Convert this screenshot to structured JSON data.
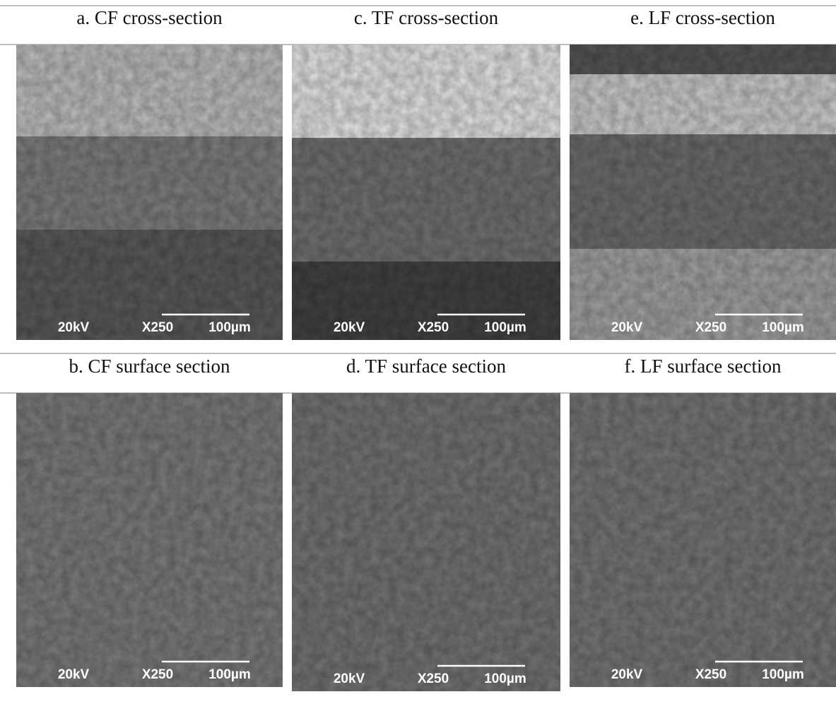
{
  "panels": [
    {
      "caption": "a. CF cross-section",
      "voltage": "20kV",
      "magnification": "X250",
      "scale": "100µm"
    },
    {
      "caption": "c. TF cross-section",
      "voltage": "20kV",
      "magnification": "X250",
      "scale": "100µm"
    },
    {
      "caption": "e. LF cross-section",
      "voltage": "20kV",
      "magnification": "X250",
      "scale": "100µm"
    },
    {
      "caption": "b. CF surface section",
      "voltage": "20kV",
      "magnification": "X250",
      "scale": "100µm"
    },
    {
      "caption": "d. TF surface section",
      "voltage": "20kV",
      "magnification": "X250",
      "scale": "100µm"
    },
    {
      "caption": "f. LF surface section",
      "voltage": "20kV",
      "magnification": "X250",
      "scale": "100µm"
    }
  ]
}
